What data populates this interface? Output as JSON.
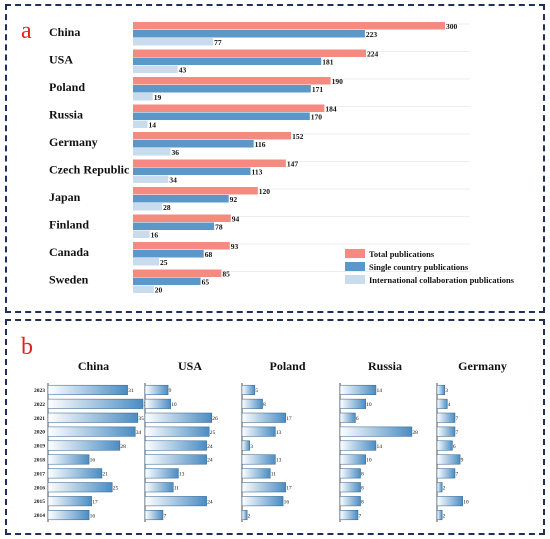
{
  "panel_a": {
    "letter": "a",
    "legend": [
      "Total publications",
      "Single country publications",
      "International collaboration publications"
    ]
  },
  "panel_b": {
    "letter": "b"
  },
  "colors": {
    "total": "#f48a80",
    "single": "#5b98c9",
    "international": "#c8dced",
    "border": "#1f2f5c",
    "letter": "#e2231a",
    "gradient_start": "#ffffff",
    "gradient_end": "#4a8cc2"
  },
  "chart_data": [
    {
      "type": "bar",
      "orientation": "horizontal",
      "categories": [
        "China",
        "USA",
        "Poland",
        "Russia",
        "Germany",
        "Czech Republic",
        "Japan",
        "Finland",
        "Canada",
        "Sweden"
      ],
      "series": [
        {
          "name": "Total publications",
          "values": [
            300,
            224,
            190,
            184,
            152,
            147,
            120,
            94,
            93,
            85
          ]
        },
        {
          "name": "Single country publications",
          "values": [
            223,
            181,
            171,
            170,
            116,
            113,
            92,
            78,
            68,
            65
          ]
        },
        {
          "name": "International collaboration publications",
          "values": [
            77,
            43,
            19,
            14,
            36,
            34,
            28,
            16,
            25,
            20
          ]
        }
      ],
      "xlim": [
        0,
        300
      ],
      "legend_position": "bottom-right",
      "grid": false
    },
    {
      "type": "bar",
      "orientation": "horizontal",
      "years": [
        "2023",
        "2022",
        "2021",
        "2020",
        "2019",
        "2018",
        "2017",
        "2016",
        "2015",
        "2014"
      ],
      "panels": [
        {
          "title": "China",
          "values": [
            31,
            37,
            35,
            34,
            28,
            16,
            21,
            25,
            17,
            16
          ]
        },
        {
          "title": "USA",
          "values": [
            9,
            10,
            26,
            25,
            24,
            24,
            13,
            11,
            24,
            7
          ]
        },
        {
          "title": "Poland",
          "values": [
            5,
            8,
            17,
            13,
            3,
            13,
            11,
            17,
            16,
            2
          ]
        },
        {
          "title": "Russia",
          "values": [
            14,
            10,
            6,
            28,
            14,
            10,
            8,
            8,
            8,
            7
          ]
        },
        {
          "title": "Germany",
          "values": [
            3,
            4,
            7,
            7,
            6,
            9,
            7,
            2,
            10,
            2
          ]
        }
      ],
      "grid": false
    }
  ]
}
